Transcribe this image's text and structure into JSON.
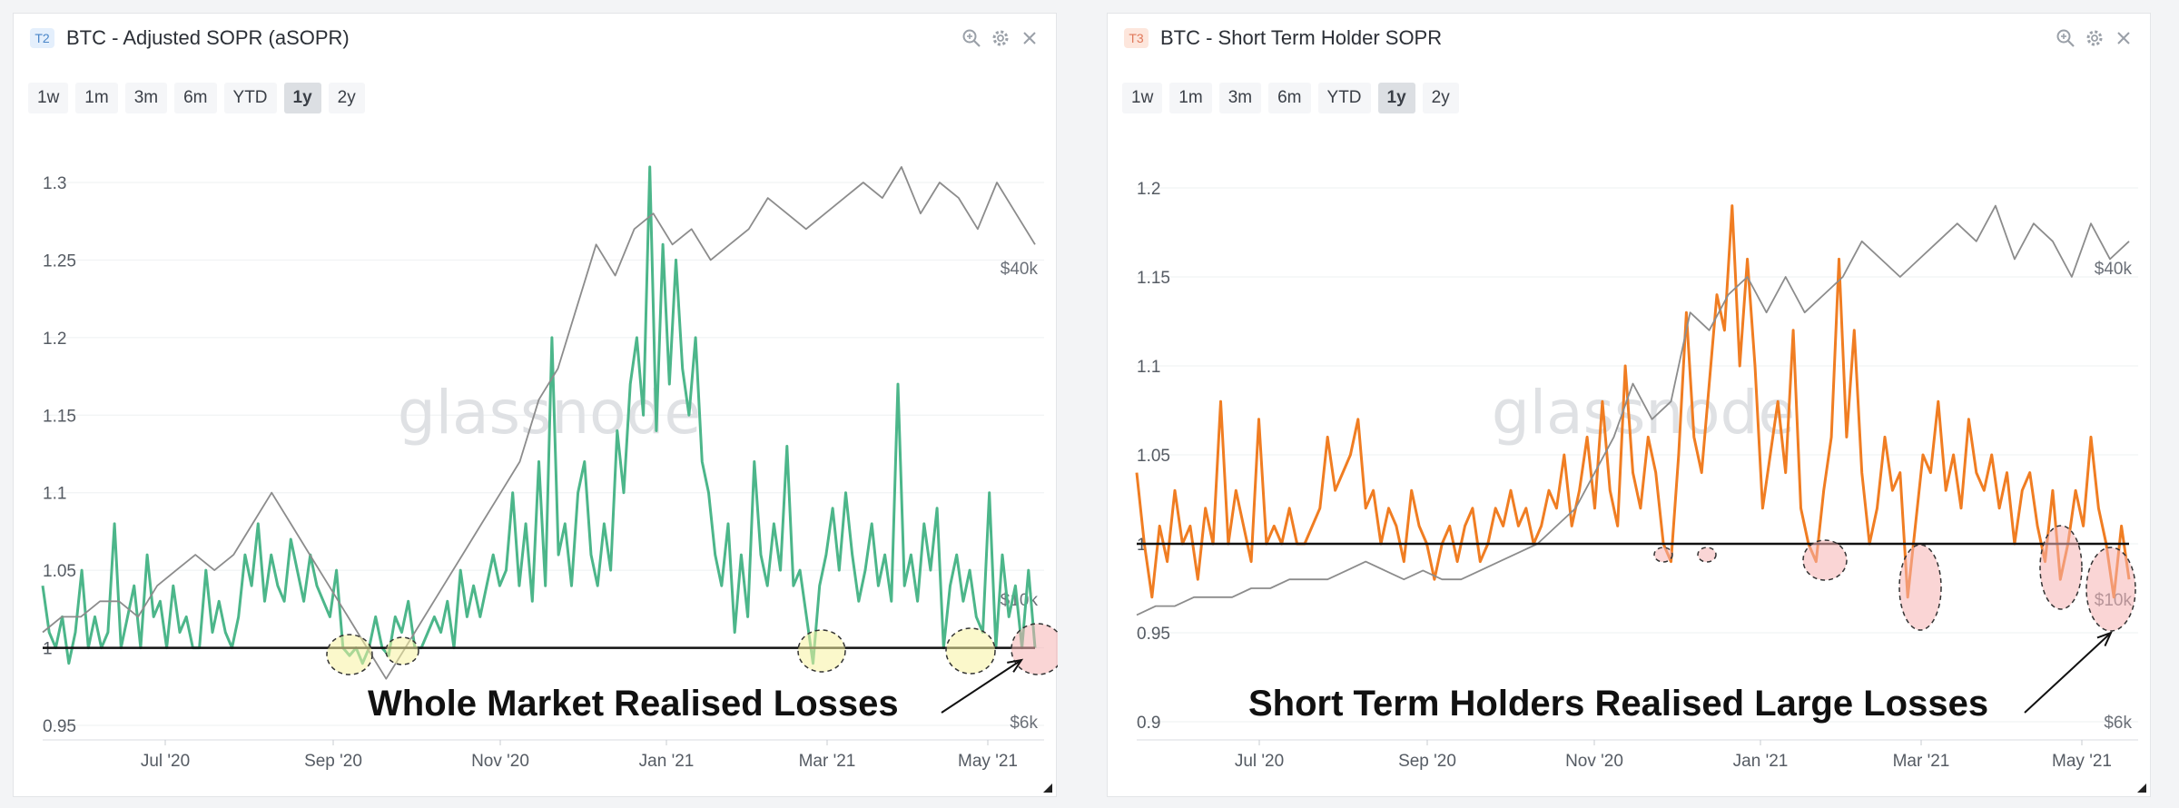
{
  "panels": [
    {
      "badge": "T2",
      "title": "BTC - Adjusted SOPR (aSOPR)",
      "ranges": [
        "1w",
        "1m",
        "3m",
        "6m",
        "YTD",
        "1y",
        "2y"
      ],
      "active_range": "1y",
      "watermark": "glassnode",
      "annotation": "Whole Market Realised Losses",
      "colors": {
        "series": "#4cb68a",
        "badge_bg": "#e4effc",
        "badge_fg": "#4a86c8",
        "highlight_fill": "#f7f3a0",
        "highlight_alt": "#f6b3b3"
      }
    },
    {
      "badge": "T3",
      "title": "BTC - Short Term Holder SOPR",
      "ranges": [
        "1w",
        "1m",
        "3m",
        "6m",
        "YTD",
        "1y",
        "2y"
      ],
      "active_range": "1y",
      "watermark": "glassnode",
      "annotation": "Short Term Holders Realised Large Losses",
      "colors": {
        "series": "#f07d22",
        "badge_bg": "#fde6dc",
        "badge_fg": "#e0785a",
        "highlight_fill": "#f6b3b3"
      }
    }
  ],
  "chart_data": [
    {
      "type": "line",
      "x_ticks": [
        "Jul '20",
        "Sep '20",
        "Nov '20",
        "Jan '21",
        "Mar '21",
        "May '21"
      ],
      "y_ticks": [
        "0.95",
        "1",
        "1.05",
        "1.1",
        "1.15",
        "1.2",
        "1.25",
        "1.3"
      ],
      "ylim": [
        0.95,
        1.3
      ],
      "right_ticks": [
        "$6k",
        "$10k",
        "$40k"
      ],
      "baseline": 1.0,
      "series": [
        {
          "values": [
            1.04,
            1.01,
            1.0,
            1.02,
            0.99,
            1.01,
            1.05,
            1.0,
            1.02,
            1.0,
            1.01,
            1.08,
            1.0,
            1.02,
            1.04,
            1.0,
            1.06,
            1.02,
            1.03,
            1.0,
            1.04,
            1.01,
            1.02,
            1.0,
            1.0,
            1.05,
            1.01,
            1.03,
            1.01,
            1.0,
            1.02,
            1.06,
            1.04,
            1.08,
            1.03,
            1.06,
            1.04,
            1.03,
            1.07,
            1.05,
            1.03,
            1.06,
            1.04,
            1.03,
            1.02,
            1.05,
            1.0,
            0.995,
            1.0,
            0.99,
            1.0,
            1.02,
            1.0,
            0.995,
            1.02,
            1.01,
            1.03,
            1.0,
            1.0,
            1.01,
            1.02,
            1.01,
            1.03,
            1.0,
            1.05,
            1.02,
            1.04,
            1.02,
            1.04,
            1.06,
            1.04,
            1.05,
            1.1,
            1.04,
            1.08,
            1.03,
            1.12,
            1.04,
            1.2,
            1.06,
            1.08,
            1.04,
            1.1,
            1.12,
            1.06,
            1.04,
            1.08,
            1.05,
            1.14,
            1.1,
            1.17,
            1.2,
            1.15,
            1.31,
            1.14,
            1.26,
            1.17,
            1.25,
            1.18,
            1.15,
            1.2,
            1.12,
            1.1,
            1.06,
            1.04,
            1.08,
            1.01,
            1.06,
            1.02,
            1.12,
            1.06,
            1.04,
            1.08,
            1.05,
            1.13,
            1.04,
            1.05,
            1.02,
            0.99,
            1.04,
            1.06,
            1.09,
            1.05,
            1.1,
            1.06,
            1.03,
            1.05,
            1.08,
            1.04,
            1.06,
            1.03,
            1.17,
            1.04,
            1.06,
            1.03,
            1.08,
            1.05,
            1.09,
            1.0,
            1.04,
            1.06,
            1.03,
            1.05,
            1.02,
            1.01,
            1.1,
            1.0,
            1.06,
            1.02,
            1.04,
            1.0,
            1.05,
            1.0
          ],
          "color": "#4cb68a"
        },
        {
          "values": [
            1.01,
            1.02,
            1.02,
            1.03,
            1.03,
            1.02,
            1.04,
            1.05,
            1.06,
            1.05,
            1.06,
            1.08,
            1.1,
            1.08,
            1.06,
            1.04,
            1.02,
            1.0,
            0.98,
            1.0,
            1.02,
            1.04,
            1.06,
            1.08,
            1.1,
            1.12,
            1.16,
            1.18,
            1.22,
            1.26,
            1.24,
            1.27,
            1.28,
            1.26,
            1.27,
            1.25,
            1.26,
            1.27,
            1.29,
            1.28,
            1.27,
            1.28,
            1.29,
            1.3,
            1.29,
            1.31,
            1.28,
            1.3,
            1.29,
            1.27,
            1.3,
            1.28,
            1.26
          ],
          "color": "#8c8c8c"
        }
      ]
    },
    {
      "type": "line",
      "x_ticks": [
        "Jul '20",
        "Sep '20",
        "Nov '20",
        "Jan '21",
        "Mar '21",
        "May '21"
      ],
      "y_ticks": [
        "0.9",
        "0.95",
        "1",
        "1.05",
        "1.1",
        "1.15",
        "1.2"
      ],
      "ylim": [
        0.9,
        1.2
      ],
      "right_ticks": [
        "$6k",
        "$10k",
        "$40k"
      ],
      "baseline": 1.0,
      "series": [
        {
          "values": [
            1.04,
            1.0,
            0.97,
            1.01,
            0.99,
            1.03,
            1.0,
            1.01,
            0.98,
            1.02,
            1.0,
            1.08,
            1.0,
            1.03,
            1.01,
            0.99,
            1.07,
            1.0,
            1.01,
            1.0,
            1.02,
            1.0,
            1.0,
            1.01,
            1.02,
            1.06,
            1.03,
            1.04,
            1.05,
            1.07,
            1.02,
            1.03,
            1.0,
            1.02,
            1.01,
            0.99,
            1.03,
            1.01,
            1.0,
            0.98,
            1.0,
            1.01,
            0.99,
            1.01,
            1.02,
            0.99,
            1.0,
            1.02,
            1.01,
            1.03,
            1.01,
            1.02,
            1.0,
            1.01,
            1.03,
            1.02,
            1.05,
            1.01,
            1.03,
            1.06,
            1.02,
            1.08,
            1.03,
            1.01,
            1.1,
            1.04,
            1.02,
            1.06,
            1.04,
            1.0,
            0.99,
            1.05,
            1.13,
            1.06,
            1.04,
            1.09,
            1.14,
            1.12,
            1.19,
            1.1,
            1.16,
            1.1,
            1.02,
            1.05,
            1.08,
            1.04,
            1.12,
            1.02,
            1.0,
            0.99,
            1.03,
            1.06,
            1.16,
            1.06,
            1.12,
            1.04,
            1.0,
            1.02,
            1.06,
            1.03,
            1.04,
            0.97,
            1.01,
            1.05,
            1.04,
            1.08,
            1.03,
            1.05,
            1.02,
            1.07,
            1.04,
            1.03,
            1.05,
            1.02,
            1.04,
            1.0,
            1.03,
            1.04,
            1.01,
            0.99,
            1.03,
            0.98,
            1.0,
            1.03,
            1.01,
            1.06,
            1.02,
            1.0,
            0.97,
            1.01,
            0.98
          ],
          "color": "#f07d22"
        },
        {
          "values": [
            0.96,
            0.965,
            0.965,
            0.97,
            0.97,
            0.97,
            0.975,
            0.975,
            0.98,
            0.98,
            0.98,
            0.985,
            0.99,
            0.985,
            0.98,
            0.985,
            0.98,
            0.98,
            0.985,
            0.99,
            0.995,
            1.0,
            1.01,
            1.02,
            1.04,
            1.06,
            1.09,
            1.07,
            1.08,
            1.13,
            1.12,
            1.14,
            1.15,
            1.13,
            1.15,
            1.13,
            1.14,
            1.15,
            1.17,
            1.16,
            1.15,
            1.16,
            1.17,
            1.18,
            1.17,
            1.19,
            1.16,
            1.18,
            1.17,
            1.15,
            1.18,
            1.16,
            1.17
          ],
          "color": "#8c8c8c"
        }
      ]
    }
  ]
}
